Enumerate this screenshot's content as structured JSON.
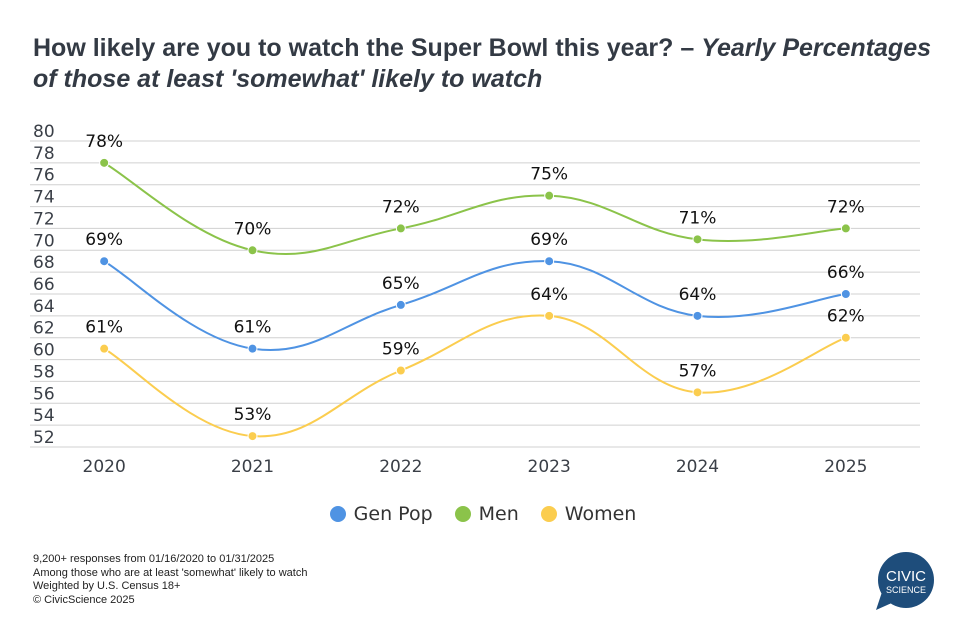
{
  "title": {
    "main": "How likely are you to watch the Super Bowl this year? – ",
    "italic": "Yearly Percentages of those at least 'somewhat' likely to watch"
  },
  "chart_data": {
    "type": "line",
    "categories": [
      "2020",
      "2021",
      "2022",
      "2023",
      "2024",
      "2025"
    ],
    "ylim": [
      52,
      80
    ],
    "yticks": [
      80,
      78,
      76,
      74,
      72,
      70,
      68,
      66,
      64,
      62,
      60,
      58,
      56,
      54,
      52
    ],
    "grid": true,
    "legend_position": "bottom",
    "series": [
      {
        "name": "Gen Pop",
        "color": "#4f93e3",
        "values": [
          69,
          61,
          65,
          69,
          64,
          66
        ]
      },
      {
        "name": "Men",
        "color": "#8bc34a",
        "values": [
          78,
          70,
          72,
          75,
          71,
          72
        ]
      },
      {
        "name": "Women",
        "color": "#fbcd4f",
        "values": [
          61,
          53,
          59,
          64,
          57,
          62
        ]
      }
    ],
    "data_label_suffix": "%"
  },
  "notes": [
    "9,200+ responses from 01/16/2020 to 01/31/2025",
    "Among those who are at least 'somewhat' likely to watch",
    "Weighted by U.S. Census 18+",
    "© CivicScience 2025"
  ],
  "logo": {
    "line1": "CIVIC",
    "line2": "SCIENCE",
    "color": "#1e4d7b"
  }
}
